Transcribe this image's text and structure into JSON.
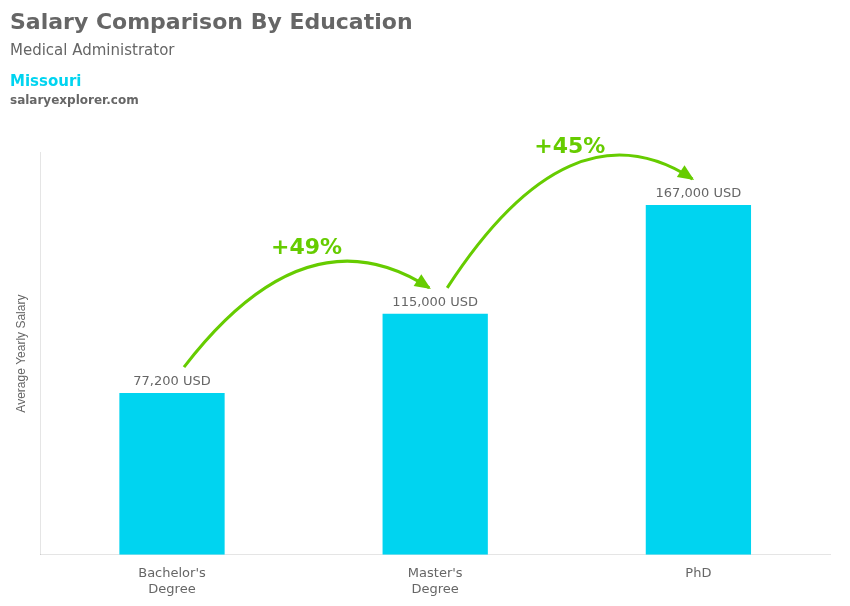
{
  "chart_data": {
    "type": "bar",
    "title": "Salary Comparison By Education",
    "subtitle": "Medical Administrator",
    "categories": [
      "Bachelor's\nDegree",
      "Master's\nDegree",
      "PhD"
    ],
    "values": [
      77200,
      115000,
      167000
    ],
    "value_labels": [
      "77,200 USD",
      "115,000 USD",
      "167,000 USD"
    ],
    "data_labels": true,
    "color": "#00d4f0",
    "ylabel": "Average Yearly Salary",
    "ylim": [
      0,
      192050
    ],
    "tick_labels": "x",
    "grid": false,
    "annotations": [
      {
        "text": "Missouri",
        "color": "#00d4f0"
      },
      {
        "text": "salaryexplorer.com"
      },
      {
        "text": "+49%",
        "from": "Bachelor's\nDegree",
        "to": "Master's\nDegree",
        "color": "#66cc00"
      },
      {
        "text": "+45%",
        "from": "Master's\nDegree",
        "to": "PhD",
        "color": "#66cc00"
      }
    ]
  }
}
